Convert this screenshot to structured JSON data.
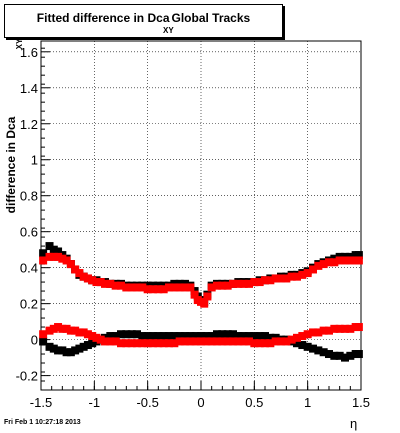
{
  "chart_data": {
    "type": "scatter",
    "title": "Fitted difference in Dca",
    "title_subscript": "XY",
    "title_suffix": "Global Tracks",
    "ylabel": "difference in Dca",
    "ylabel_subscript": "XY",
    "xlabel": "η",
    "xlim": [
      -1.5,
      1.5
    ],
    "ylim": [
      -0.28,
      1.66
    ],
    "x_ticks": [
      -1.5,
      -1,
      -0.5,
      0,
      0.5,
      1,
      1.5
    ],
    "x_tick_labels": [
      "-1.5",
      "-1",
      "-0.5",
      "0",
      "0.5",
      "1",
      "1.5"
    ],
    "y_ticks": [
      -0.2,
      0,
      0.2,
      0.4,
      0.6,
      0.8,
      1,
      1.2,
      1.4,
      1.6
    ],
    "y_tick_labels": [
      "-0.2",
      "0",
      "0.2",
      "0.4",
      "0.6",
      "0.8",
      "1",
      "1.2",
      "1.4",
      "1.6"
    ],
    "grid": true,
    "series": [
      {
        "color": "#000000",
        "points": [
          [
            -1.48,
            0.48
          ],
          [
            -1.42,
            0.52
          ],
          [
            -1.38,
            0.5
          ],
          [
            -1.34,
            0.49
          ],
          [
            -1.3,
            0.47
          ],
          [
            -1.26,
            0.45
          ],
          [
            -1.22,
            0.42
          ],
          [
            -1.18,
            0.39
          ],
          [
            -1.14,
            0.36
          ],
          [
            -1.1,
            0.35
          ],
          [
            -1.06,
            0.34
          ],
          [
            -1.02,
            0.33
          ],
          [
            -0.98,
            0.33
          ],
          [
            -0.94,
            0.32
          ],
          [
            -0.9,
            0.32
          ],
          [
            -0.85,
            0.31
          ],
          [
            -0.8,
            0.31
          ],
          [
            -0.75,
            0.31
          ],
          [
            -0.7,
            0.3
          ],
          [
            -0.65,
            0.3
          ],
          [
            -0.6,
            0.3
          ],
          [
            -0.55,
            0.3
          ],
          [
            -0.5,
            0.3
          ],
          [
            -0.45,
            0.3
          ],
          [
            -0.4,
            0.3
          ],
          [
            -0.35,
            0.3
          ],
          [
            -0.3,
            0.3
          ],
          [
            -0.25,
            0.31
          ],
          [
            -0.2,
            0.31
          ],
          [
            -0.15,
            0.31
          ],
          [
            -0.1,
            0.3
          ],
          [
            -0.06,
            0.27
          ],
          [
            -0.03,
            0.24
          ],
          [
            0.0,
            0.22
          ],
          [
            0.03,
            0.21
          ],
          [
            0.06,
            0.25
          ],
          [
            0.1,
            0.3
          ],
          [
            0.15,
            0.31
          ],
          [
            0.2,
            0.31
          ],
          [
            0.25,
            0.31
          ],
          [
            0.3,
            0.31
          ],
          [
            0.35,
            0.32
          ],
          [
            0.4,
            0.32
          ],
          [
            0.45,
            0.32
          ],
          [
            0.5,
            0.32
          ],
          [
            0.55,
            0.33
          ],
          [
            0.6,
            0.33
          ],
          [
            0.65,
            0.34
          ],
          [
            0.7,
            0.34
          ],
          [
            0.75,
            0.35
          ],
          [
            0.8,
            0.35
          ],
          [
            0.85,
            0.36
          ],
          [
            0.9,
            0.36
          ],
          [
            0.95,
            0.37
          ],
          [
            1.0,
            0.38
          ],
          [
            1.05,
            0.4
          ],
          [
            1.1,
            0.42
          ],
          [
            1.15,
            0.43
          ],
          [
            1.2,
            0.44
          ],
          [
            1.25,
            0.45
          ],
          [
            1.3,
            0.46
          ],
          [
            1.35,
            0.46
          ],
          [
            1.4,
            0.46
          ],
          [
            1.45,
            0.47
          ],
          [
            1.48,
            0.47
          ]
        ]
      },
      {
        "color": "#ff0000",
        "points": [
          [
            -1.48,
            0.44
          ],
          [
            -1.42,
            0.46
          ],
          [
            -1.38,
            0.46
          ],
          [
            -1.34,
            0.46
          ],
          [
            -1.3,
            0.45
          ],
          [
            -1.26,
            0.44
          ],
          [
            -1.22,
            0.42
          ],
          [
            -1.18,
            0.39
          ],
          [
            -1.14,
            0.37
          ],
          [
            -1.1,
            0.35
          ],
          [
            -1.06,
            0.34
          ],
          [
            -1.02,
            0.33
          ],
          [
            -0.98,
            0.32
          ],
          [
            -0.94,
            0.32
          ],
          [
            -0.9,
            0.31
          ],
          [
            -0.85,
            0.31
          ],
          [
            -0.8,
            0.3
          ],
          [
            -0.75,
            0.3
          ],
          [
            -0.7,
            0.29
          ],
          [
            -0.65,
            0.29
          ],
          [
            -0.6,
            0.29
          ],
          [
            -0.55,
            0.29
          ],
          [
            -0.5,
            0.28
          ],
          [
            -0.45,
            0.28
          ],
          [
            -0.4,
            0.28
          ],
          [
            -0.35,
            0.28
          ],
          [
            -0.3,
            0.29
          ],
          [
            -0.25,
            0.29
          ],
          [
            -0.2,
            0.29
          ],
          [
            -0.15,
            0.29
          ],
          [
            -0.1,
            0.29
          ],
          [
            -0.06,
            0.25
          ],
          [
            -0.03,
            0.22
          ],
          [
            0.0,
            0.21
          ],
          [
            0.03,
            0.2
          ],
          [
            0.06,
            0.24
          ],
          [
            0.1,
            0.29
          ],
          [
            0.15,
            0.3
          ],
          [
            0.2,
            0.3
          ],
          [
            0.25,
            0.3
          ],
          [
            0.3,
            0.31
          ],
          [
            0.35,
            0.31
          ],
          [
            0.4,
            0.31
          ],
          [
            0.45,
            0.31
          ],
          [
            0.5,
            0.32
          ],
          [
            0.55,
            0.32
          ],
          [
            0.6,
            0.33
          ],
          [
            0.65,
            0.33
          ],
          [
            0.7,
            0.34
          ],
          [
            0.75,
            0.34
          ],
          [
            0.8,
            0.34
          ],
          [
            0.85,
            0.35
          ],
          [
            0.9,
            0.35
          ],
          [
            0.95,
            0.36
          ],
          [
            1.0,
            0.37
          ],
          [
            1.05,
            0.39
          ],
          [
            1.1,
            0.41
          ],
          [
            1.15,
            0.42
          ],
          [
            1.2,
            0.43
          ],
          [
            1.25,
            0.43
          ],
          [
            1.3,
            0.44
          ],
          [
            1.35,
            0.44
          ],
          [
            1.4,
            0.44
          ],
          [
            1.45,
            0.44
          ],
          [
            1.48,
            0.44
          ]
        ]
      },
      {
        "color": "#000000",
        "points": [
          [
            -1.48,
            -0.01
          ],
          [
            -1.42,
            -0.04
          ],
          [
            -1.38,
            -0.05
          ],
          [
            -1.34,
            -0.06
          ],
          [
            -1.3,
            -0.06
          ],
          [
            -1.26,
            -0.07
          ],
          [
            -1.22,
            -0.07
          ],
          [
            -1.18,
            -0.06
          ],
          [
            -1.14,
            -0.05
          ],
          [
            -1.1,
            -0.04
          ],
          [
            -1.06,
            -0.03
          ],
          [
            -1.02,
            -0.02
          ],
          [
            -0.98,
            -0.01
          ],
          [
            -0.94,
            0.0
          ],
          [
            -0.9,
            0.01
          ],
          [
            -0.85,
            0.02
          ],
          [
            -0.8,
            0.02
          ],
          [
            -0.75,
            0.03
          ],
          [
            -0.7,
            0.03
          ],
          [
            -0.65,
            0.03
          ],
          [
            -0.6,
            0.03
          ],
          [
            -0.55,
            0.02
          ],
          [
            -0.5,
            0.02
          ],
          [
            -0.45,
            0.02
          ],
          [
            -0.4,
            0.02
          ],
          [
            -0.35,
            0.02
          ],
          [
            -0.3,
            0.02
          ],
          [
            -0.25,
            0.02
          ],
          [
            -0.2,
            0.02
          ],
          [
            -0.15,
            0.02
          ],
          [
            -0.1,
            0.02
          ],
          [
            -0.05,
            0.02
          ],
          [
            0.0,
            0.02
          ],
          [
            0.05,
            0.02
          ],
          [
            0.1,
            0.02
          ],
          [
            0.15,
            0.03
          ],
          [
            0.2,
            0.03
          ],
          [
            0.25,
            0.03
          ],
          [
            0.3,
            0.03
          ],
          [
            0.35,
            0.02
          ],
          [
            0.4,
            0.02
          ],
          [
            0.45,
            0.02
          ],
          [
            0.5,
            0.02
          ],
          [
            0.55,
            0.02
          ],
          [
            0.6,
            0.02
          ],
          [
            0.65,
            0.01
          ],
          [
            0.7,
            0.01
          ],
          [
            0.75,
            0.0
          ],
          [
            0.8,
            0.0
          ],
          [
            0.85,
            -0.01
          ],
          [
            0.9,
            -0.02
          ],
          [
            0.95,
            -0.03
          ],
          [
            1.0,
            -0.04
          ],
          [
            1.05,
            -0.05
          ],
          [
            1.1,
            -0.06
          ],
          [
            1.15,
            -0.07
          ],
          [
            1.2,
            -0.08
          ],
          [
            1.25,
            -0.09
          ],
          [
            1.3,
            -0.09
          ],
          [
            1.35,
            -0.1
          ],
          [
            1.4,
            -0.09
          ],
          [
            1.45,
            -0.08
          ],
          [
            1.48,
            -0.08
          ]
        ]
      },
      {
        "color": "#ff0000",
        "points": [
          [
            -1.48,
            0.03
          ],
          [
            -1.42,
            0.05
          ],
          [
            -1.38,
            0.06
          ],
          [
            -1.34,
            0.07
          ],
          [
            -1.3,
            0.06
          ],
          [
            -1.26,
            0.06
          ],
          [
            -1.22,
            0.05
          ],
          [
            -1.18,
            0.05
          ],
          [
            -1.14,
            0.04
          ],
          [
            -1.1,
            0.04
          ],
          [
            -1.06,
            0.03
          ],
          [
            -1.02,
            0.02
          ],
          [
            -0.98,
            0.01
          ],
          [
            -0.94,
            0.0
          ],
          [
            -0.9,
            -0.01
          ],
          [
            -0.85,
            -0.01
          ],
          [
            -0.8,
            -0.01
          ],
          [
            -0.75,
            -0.02
          ],
          [
            -0.7,
            -0.02
          ],
          [
            -0.65,
            -0.02
          ],
          [
            -0.6,
            -0.02
          ],
          [
            -0.55,
            -0.02
          ],
          [
            -0.5,
            -0.02
          ],
          [
            -0.45,
            -0.02
          ],
          [
            -0.4,
            -0.02
          ],
          [
            -0.35,
            -0.02
          ],
          [
            -0.3,
            -0.02
          ],
          [
            -0.25,
            -0.02
          ],
          [
            -0.2,
            -0.01
          ],
          [
            -0.15,
            -0.01
          ],
          [
            -0.1,
            -0.01
          ],
          [
            -0.05,
            -0.01
          ],
          [
            0.0,
            -0.01
          ],
          [
            0.05,
            -0.01
          ],
          [
            0.1,
            -0.01
          ],
          [
            0.15,
            -0.01
          ],
          [
            0.2,
            -0.01
          ],
          [
            0.25,
            -0.01
          ],
          [
            0.3,
            -0.01
          ],
          [
            0.35,
            -0.01
          ],
          [
            0.4,
            -0.01
          ],
          [
            0.45,
            -0.01
          ],
          [
            0.5,
            -0.02
          ],
          [
            0.55,
            -0.02
          ],
          [
            0.6,
            -0.02
          ],
          [
            0.65,
            -0.02
          ],
          [
            0.7,
            -0.01
          ],
          [
            0.75,
            -0.01
          ],
          [
            0.8,
            -0.01
          ],
          [
            0.85,
            0.0
          ],
          [
            0.9,
            0.01
          ],
          [
            0.95,
            0.02
          ],
          [
            1.0,
            0.03
          ],
          [
            1.05,
            0.04
          ],
          [
            1.1,
            0.04
          ],
          [
            1.15,
            0.05
          ],
          [
            1.2,
            0.05
          ],
          [
            1.25,
            0.06
          ],
          [
            1.3,
            0.06
          ],
          [
            1.35,
            0.06
          ],
          [
            1.4,
            0.06
          ],
          [
            1.45,
            0.07
          ],
          [
            1.48,
            0.07
          ]
        ]
      }
    ]
  },
  "footer": "Fri Feb  1 10:27:18 2013"
}
